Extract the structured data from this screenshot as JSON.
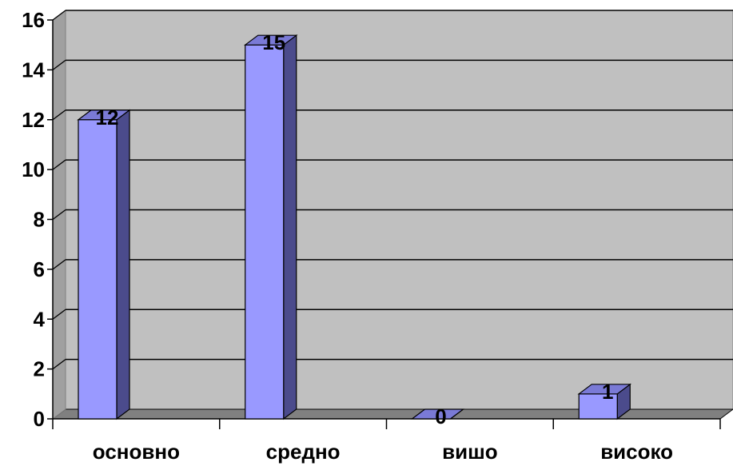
{
  "chart_data": {
    "type": "bar",
    "categories": [
      "основно",
      "средно",
      "вишо",
      "високо"
    ],
    "values": [
      12,
      15,
      0,
      1
    ],
    "ylim": [
      0,
      16
    ],
    "yticks": [
      0,
      2,
      4,
      6,
      8,
      10,
      12,
      14,
      16
    ],
    "grid": true,
    "legend": "none",
    "data_labels": true,
    "style": "3d-column",
    "colors": {
      "bar_front": "#9999ff",
      "bar_side": "#4b4b8c",
      "bar_top": "#7a7ad6",
      "plot_back_wall": "#c0c0c0",
      "plot_floor": "#808080",
      "gridline": "#000000"
    }
  }
}
